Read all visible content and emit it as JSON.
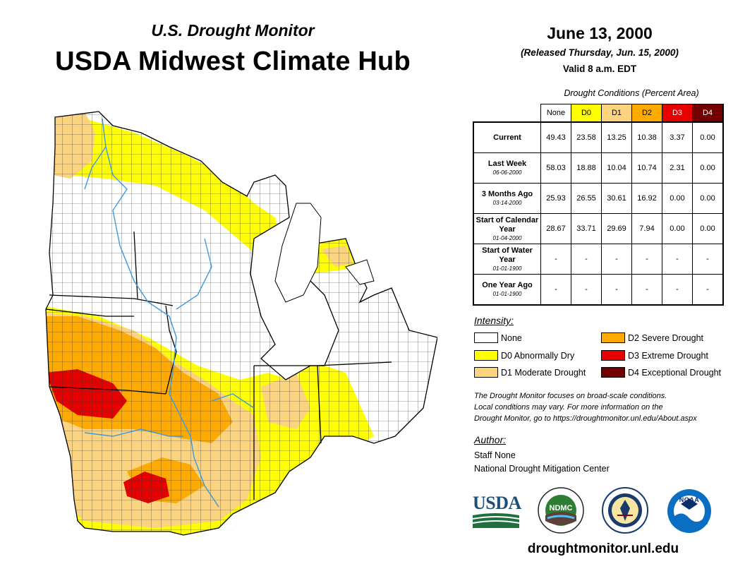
{
  "header": {
    "subtitle": "U.S. Drought Monitor",
    "title": "USDA Midwest Climate Hub"
  },
  "map_info": {
    "date": "June 13, 2000",
    "released": "(Released Thursday, Jun. 15, 2000)",
    "valid": "Valid 8 a.m. EDT"
  },
  "stats_table": {
    "caption": "Drought Conditions (Percent Area)",
    "columns": [
      "None",
      "D0",
      "D1",
      "D2",
      "D3",
      "D4"
    ],
    "column_colors": [
      "#ffffff",
      "#ffff00",
      "#fcd37f",
      "#ffaa00",
      "#e60000",
      "#730000"
    ],
    "rows": [
      {
        "label": "Current",
        "sub": "",
        "values": [
          "49.43",
          "23.58",
          "13.25",
          "10.38",
          "3.37",
          "0.00"
        ]
      },
      {
        "label": "Last Week",
        "sub": "06-06-2000",
        "values": [
          "58.03",
          "18.88",
          "10.04",
          "10.74",
          "2.31",
          "0.00"
        ]
      },
      {
        "label": "3 Months Ago",
        "sub": "03-14-2000",
        "values": [
          "25.93",
          "26.55",
          "30.61",
          "16.92",
          "0.00",
          "0.00"
        ]
      },
      {
        "label": "Start of Calendar Year",
        "sub": "01-04-2000",
        "values": [
          "28.67",
          "33.71",
          "29.69",
          "7.94",
          "0.00",
          "0.00"
        ]
      },
      {
        "label": "Start of Water Year",
        "sub": "01-01-1900",
        "values": [
          "-",
          "-",
          "-",
          "-",
          "-",
          "-"
        ]
      },
      {
        "label": "One Year Ago",
        "sub": "01-01-1900",
        "values": [
          "-",
          "-",
          "-",
          "-",
          "-",
          "-"
        ]
      }
    ]
  },
  "legend": {
    "title": "Intensity:",
    "items": [
      {
        "label": "None",
        "color": "#ffffff"
      },
      {
        "label": "D0 Abnormally Dry",
        "color": "#ffff00"
      },
      {
        "label": "D1 Moderate Drought",
        "color": "#fcd37f"
      },
      {
        "label": "D2 Severe Drought",
        "color": "#ffaa00"
      },
      {
        "label": "D3 Extreme Drought",
        "color": "#e60000"
      },
      {
        "label": "D4 Exceptional Drought",
        "color": "#730000"
      }
    ]
  },
  "note": {
    "line1": "The Drought Monitor focuses on broad-scale conditions.",
    "line2": "Local conditions may vary. For more information on the",
    "line3": "Drought Monitor, go to https://droughtmonitor.unl.edu/About.aspx"
  },
  "author": {
    "title": "Author:",
    "name": "Staff None",
    "org": "National Drought Mitigation Center"
  },
  "logos": {
    "usda": "USDA",
    "ndmc": "NDMC",
    "noaa": "NOAA"
  },
  "website": "droughtmonitor.unl.edu"
}
